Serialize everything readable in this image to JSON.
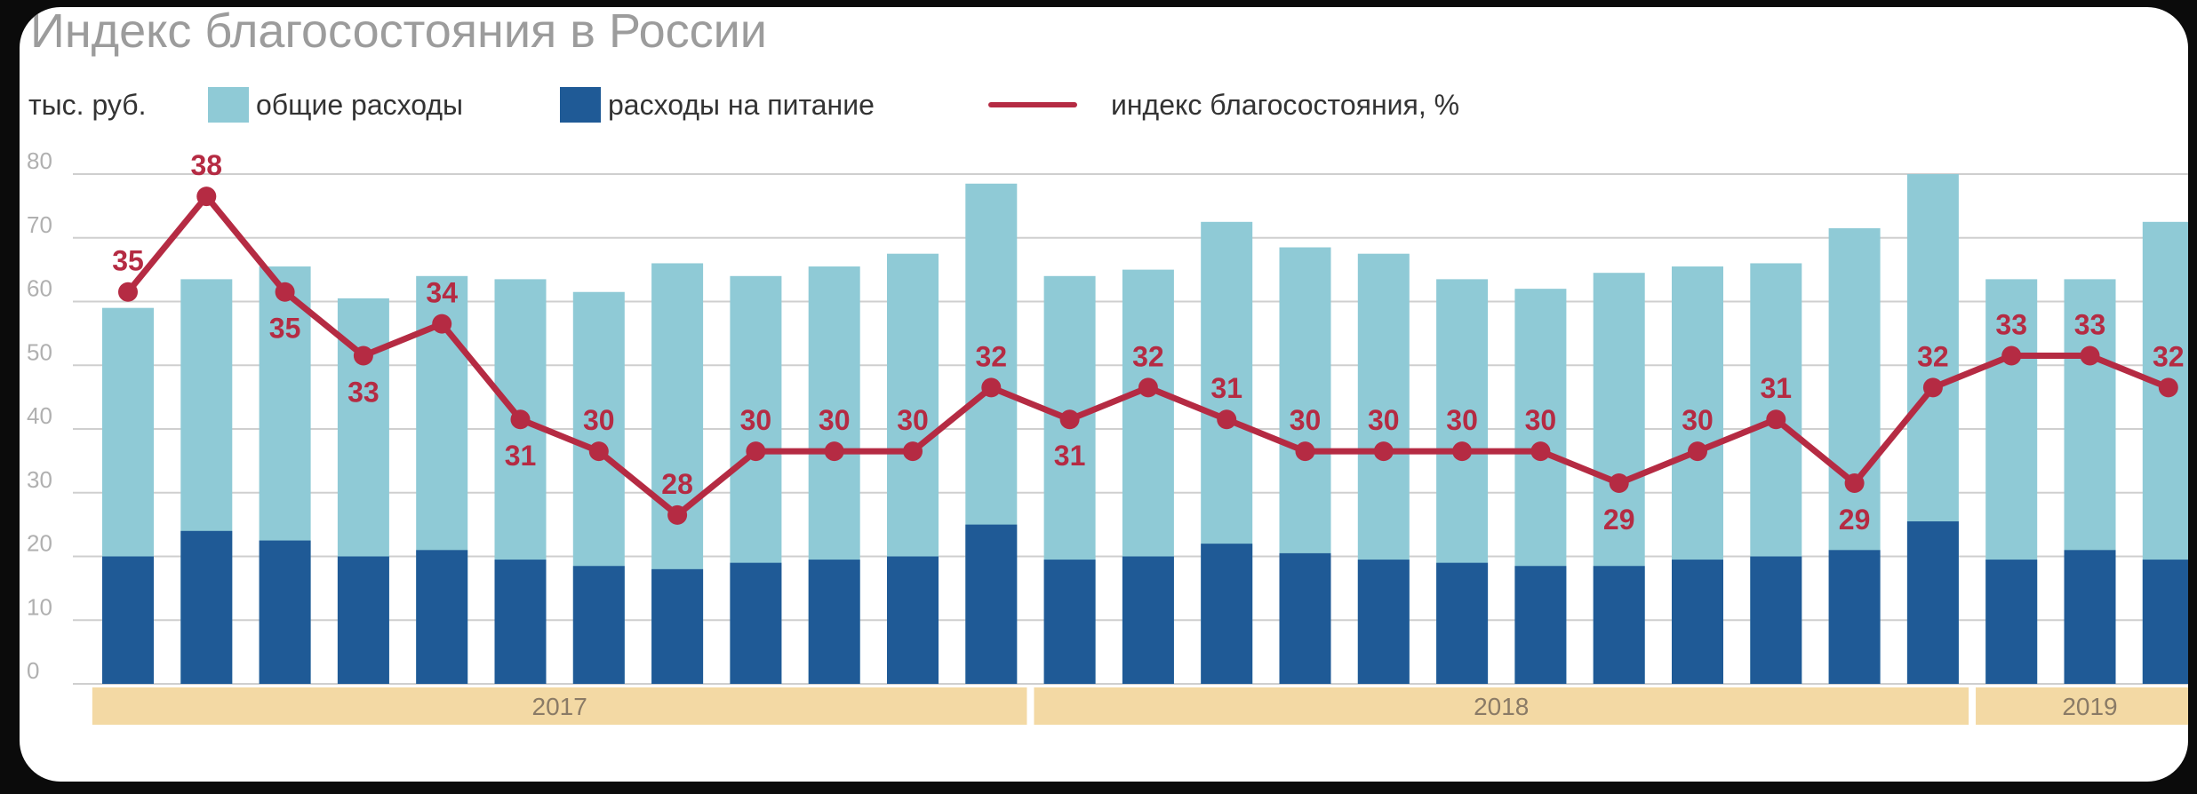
{
  "title": "Индекс благосостояния в России",
  "legend": {
    "unit": "тыс. руб.",
    "total": "общие расходы",
    "food": "расходы на питание",
    "index": "индекс благосостояния, %"
  },
  "colors": {
    "total": "#8fcad6",
    "food": "#1f5a96",
    "index": "#b52b43",
    "year_band": "#f3d9a4",
    "grid": "#cfcfcf"
  },
  "chart_data": {
    "type": "bar",
    "ylabel": "тыс. руб.",
    "ylim": [
      0,
      80
    ],
    "yticks": [
      0,
      10,
      20,
      30,
      40,
      50,
      60,
      70,
      80
    ],
    "grid": true,
    "legend_position": "top-left",
    "year_groups": [
      {
        "label": "2017",
        "months": 12
      },
      {
        "label": "2018",
        "months": 12
      },
      {
        "label": "2019",
        "months": 3
      }
    ],
    "series": [
      {
        "name": "общие расходы",
        "type": "bar",
        "values": [
          59,
          63.5,
          65.5,
          60.5,
          64,
          63.5,
          61.5,
          66,
          64,
          65.5,
          67.5,
          78.5,
          64,
          65,
          72.5,
          68.5,
          67.5,
          63.5,
          62,
          64.5,
          65.5,
          66,
          71.5,
          80,
          63.5,
          63.5,
          72.5
        ]
      },
      {
        "name": "расходы на питание",
        "type": "bar",
        "values": [
          20,
          24,
          22.5,
          20,
          21,
          19.5,
          18.5,
          18,
          19,
          19.5,
          20,
          25,
          19.5,
          20,
          22,
          20.5,
          19.5,
          19,
          18.5,
          18.5,
          19.5,
          20,
          21,
          25.5,
          19.5,
          21,
          19.5
        ]
      },
      {
        "name": "индекс благосостояния, %",
        "type": "line",
        "values": [
          35,
          38,
          35,
          33,
          34,
          31,
          30,
          28,
          30,
          30,
          30,
          32,
          31,
          32,
          31,
          30,
          30,
          30,
          30,
          29,
          30,
          31,
          29,
          32,
          33,
          33,
          32
        ]
      }
    ],
    "index_line_plot_y": [
      61.5,
      76.5,
      61.5,
      51.5,
      56.5,
      41.5,
      36.5,
      26.5,
      36.5,
      36.5,
      36.5,
      46.5,
      41.5,
      46.5,
      41.5,
      36.5,
      36.5,
      36.5,
      36.5,
      31.5,
      36.5,
      41.5,
      31.5,
      46.5,
      51.5,
      51.5,
      46.5
    ],
    "index_label_positions": [
      "above",
      "above",
      "below",
      "below",
      "above",
      "below",
      "above",
      "above",
      "above",
      "above",
      "above",
      "above",
      "below",
      "above",
      "above",
      "above",
      "above",
      "above",
      "above",
      "below",
      "above",
      "above",
      "below",
      "above",
      "above",
      "above",
      "above"
    ]
  }
}
